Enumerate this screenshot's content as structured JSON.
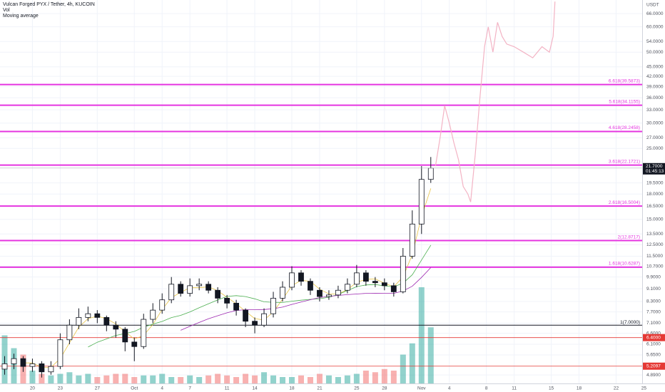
{
  "header": {
    "title": "Vulcan Forged PYX / Tether, 4h, KUCOIN",
    "indicators": [
      "Vol",
      "Moving average"
    ]
  },
  "chart_data": {
    "type": "candlestick",
    "currency": "USDT",
    "x": [
      -3,
      -2,
      -1,
      0,
      1,
      2,
      3,
      4,
      5,
      6,
      7,
      8,
      9,
      10,
      11,
      12,
      13,
      14,
      15,
      16,
      17,
      18,
      19,
      20,
      21,
      22,
      23,
      24,
      25,
      26,
      27,
      28,
      29,
      30,
      31,
      32,
      33,
      34,
      35,
      36,
      37,
      38,
      39,
      40,
      41,
      42,
      43
    ],
    "open": [
      5.1,
      5.3,
      5.5,
      5.2,
      5.3,
      5.0,
      5.2,
      6.3,
      7.0,
      7.4,
      7.6,
      7.4,
      7.0,
      6.8,
      6.2,
      6.0,
      7.3,
      7.8,
      8.4,
      9.4,
      8.8,
      9.3,
      9.4,
      9.0,
      8.5,
      8.2,
      7.8,
      7.2,
      7.0,
      7.6,
      8.5,
      9.2,
      10.2,
      9.6,
      9.0,
      8.6,
      8.7,
      9.0,
      9.4,
      10.2,
      9.6,
      9.5,
      9.3,
      8.9,
      11.5,
      14.5,
      20.0
    ],
    "high": [
      5.6,
      5.7,
      5.6,
      5.5,
      5.4,
      5.4,
      6.6,
      7.3,
      7.9,
      8.0,
      7.8,
      7.5,
      7.2,
      6.9,
      6.4,
      7.6,
      8.2,
      8.8,
      9.9,
      9.6,
      9.8,
      9.8,
      9.6,
      9.2,
      8.7,
      8.4,
      7.9,
      7.4,
      7.9,
      8.9,
      9.6,
      10.7,
      10.4,
      9.8,
      9.2,
      9.0,
      9.3,
      9.8,
      10.8,
      10.4,
      9.9,
      9.8,
      9.5,
      12.2,
      16.0,
      22.0,
      23.5
    ],
    "low": [
      4.9,
      5.1,
      5.0,
      5.0,
      4.8,
      4.9,
      5.1,
      6.1,
      6.8,
      7.2,
      7.1,
      6.7,
      6.4,
      5.8,
      5.4,
      5.9,
      7.1,
      7.6,
      8.2,
      8.6,
      8.6,
      9.0,
      8.8,
      8.2,
      7.9,
      7.5,
      6.9,
      6.6,
      6.9,
      7.4,
      8.3,
      9.0,
      9.3,
      8.7,
      8.3,
      8.4,
      8.5,
      8.8,
      9.2,
      9.3,
      9.2,
      9.0,
      8.6,
      8.8,
      11.3,
      13.5,
      19.5
    ],
    "close": [
      5.3,
      5.5,
      5.2,
      5.3,
      5.0,
      5.2,
      6.3,
      7.0,
      7.4,
      7.6,
      7.4,
      7.0,
      6.8,
      6.2,
      6.0,
      7.3,
      7.8,
      8.4,
      9.4,
      8.8,
      9.3,
      9.4,
      9.0,
      8.5,
      8.2,
      7.8,
      7.2,
      7.0,
      7.6,
      8.5,
      9.2,
      10.2,
      9.6,
      9.0,
      8.6,
      8.7,
      9.0,
      9.4,
      10.2,
      9.6,
      9.5,
      9.3,
      8.9,
      11.5,
      14.5,
      20.0,
      21.7
    ],
    "volume": [
      30,
      22,
      18,
      8,
      6,
      5,
      6,
      7,
      5,
      6,
      4,
      5,
      6,
      6,
      4,
      5,
      5,
      6,
      4,
      4,
      5,
      4,
      5,
      6,
      5,
      4,
      6,
      5,
      7,
      5,
      4,
      4,
      5,
      4,
      6,
      5,
      4,
      5,
      6,
      8,
      7,
      9,
      8,
      18,
      25,
      60,
      35
    ],
    "xlim": [
      -3.5,
      66.2
    ],
    "xticks": [
      {
        "value": 0,
        "label": "20"
      },
      {
        "value": 3,
        "label": "23"
      },
      {
        "value": 7,
        "label": "27"
      },
      {
        "value": 11,
        "label": "Oct"
      },
      {
        "value": 14,
        "label": "4"
      },
      {
        "value": 17,
        "label": "7"
      },
      {
        "value": 21,
        "label": "11"
      },
      {
        "value": 24,
        "label": "14"
      },
      {
        "value": 28,
        "label": "18"
      },
      {
        "value": 31,
        "label": "21"
      },
      {
        "value": 35,
        "label": "25"
      },
      {
        "value": 38,
        "label": "28"
      },
      {
        "value": 42,
        "label": "Nov"
      },
      {
        "value": 45,
        "label": "4"
      },
      {
        "value": 49,
        "label": "8"
      },
      {
        "value": 52,
        "label": "11"
      },
      {
        "value": 56,
        "label": "15"
      },
      {
        "value": 59,
        "label": "18"
      },
      {
        "value": 63,
        "label": "22"
      },
      {
        "value": 66,
        "label": "25"
      }
    ],
    "ylim": [
      4.6,
      72.8
    ],
    "log_scale": true,
    "grid": true,
    "yticks": [
      {
        "value": 66,
        "label": "66.0000"
      },
      {
        "value": 60,
        "label": "60.0000"
      },
      {
        "value": 54,
        "label": "54.0000"
      },
      {
        "value": 50,
        "label": "50.0000"
      },
      {
        "value": 45,
        "label": "45.0000"
      },
      {
        "value": 42,
        "label": "42.0000"
      },
      {
        "value": 39,
        "label": "39.0000"
      },
      {
        "value": 36,
        "label": "36.0000"
      },
      {
        "value": 33,
        "label": "33.0000"
      },
      {
        "value": 30,
        "label": "30.0000"
      },
      {
        "value": 27,
        "label": "27.0000"
      },
      {
        "value": 25,
        "label": "25.0000"
      },
      {
        "value": 19.5,
        "label": "19.5000"
      },
      {
        "value": 18,
        "label": "18.0000"
      },
      {
        "value": 16.5,
        "label": "16.5000"
      },
      {
        "value": 15,
        "label": "15.0000"
      },
      {
        "value": 13.5,
        "label": "13.5000"
      },
      {
        "value": 12.5,
        "label": "12.5000"
      },
      {
        "value": 11.5,
        "label": "11.5000"
      },
      {
        "value": 10.7,
        "label": "10.7000"
      },
      {
        "value": 9.9,
        "label": "9.9000"
      },
      {
        "value": 9.1,
        "label": "9.1000"
      },
      {
        "value": 8.3,
        "label": "8.3000"
      },
      {
        "value": 7.7,
        "label": "7.7000"
      },
      {
        "value": 7.1,
        "label": "7.1000"
      },
      {
        "value": 6.6,
        "label": "6.6000"
      },
      {
        "value": 6.1,
        "label": "6.1000"
      },
      {
        "value": 5.65,
        "label": "5.6500"
      },
      {
        "value": 4.89,
        "label": "4.8900"
      }
    ],
    "projection": {
      "color": "#f3b3c4",
      "x": [
        43.5,
        44,
        44.5,
        45,
        45.5,
        46,
        46.5,
        47,
        47.3,
        47.8,
        48.3,
        48.8,
        49.2,
        49.7,
        50.2,
        50.7,
        51.2,
        52,
        53,
        54,
        55,
        55.8,
        56.2,
        56.4
      ],
      "values": [
        22,
        27,
        34,
        30,
        26,
        23,
        19,
        18,
        17,
        24,
        36,
        52,
        60,
        50,
        62,
        56,
        53,
        52,
        50,
        48,
        52,
        50,
        56,
        72
      ]
    },
    "fib_color": "#e535e0",
    "fib_levels": [
      {
        "value": 39.5873,
        "label": "6.618(39.5873)"
      },
      {
        "value": 34.1155,
        "label": "5.618(34.1155)"
      },
      {
        "value": 28.2458,
        "label": "4.618(28.2458)"
      },
      {
        "value": 22.1721,
        "label": "3.618(22.1721)"
      },
      {
        "value": 16.5004,
        "label": "2.618(16.5004)"
      },
      {
        "value": 12.8717,
        "label": "2(12.8717)"
      },
      {
        "value": 10.6287,
        "label": "1.618(10.6287)"
      }
    ],
    "base_level": {
      "value": 7.0,
      "label": "1(7.0000)",
      "color": "#131722"
    },
    "price_lines": [
      {
        "value": 6.4,
        "label": "6.4000",
        "color": "#e53935"
      },
      {
        "value": 5.2097,
        "label": "5.2097",
        "color": "#e53935"
      }
    ],
    "last": {
      "value": 21.7,
      "label": "21.7000",
      "countdown": "01:45:13",
      "color": "#131722"
    }
  }
}
